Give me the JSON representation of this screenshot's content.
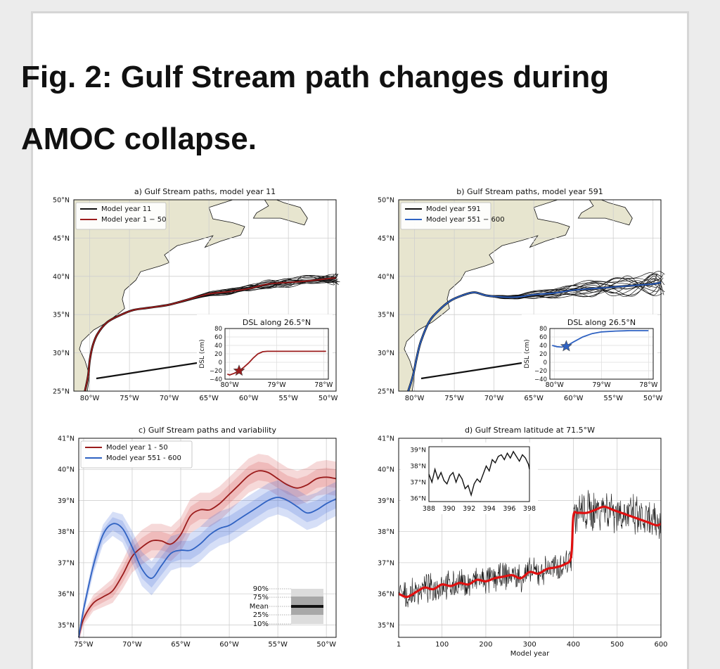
{
  "figure_title": "Fig. 2: Gulf Stream path changes during AMOC collapse.",
  "colors": {
    "black": "#111111",
    "red": "#9b1c1c",
    "blue": "#2f62c2",
    "land": "#e7e5cf",
    "bright_red": "#e01010"
  },
  "chart_data": [
    {
      "panel": "a",
      "type": "line",
      "title": "a) Gulf Stream paths, model year 11",
      "legend": [
        "Model year 11",
        "Model year 1 − 50"
      ],
      "legend_position": "top-left",
      "x_ticks": [
        "80°W",
        "75°W",
        "70°W",
        "65°W",
        "60°W",
        "55°W",
        "50°W"
      ],
      "y_ticks": [
        "25°N",
        "30°N",
        "35°N",
        "40°N",
        "45°N",
        "50°N"
      ],
      "xlim": [
        -82,
        -49
      ],
      "ylim": [
        25,
        50
      ],
      "series": [
        {
          "name": "Model year 1 − 50",
          "x": [
            -80.6,
            -80.2,
            -80.0,
            -79.6,
            -79.0,
            -77.8,
            -76.0,
            -74.5,
            -72.5,
            -70.0,
            -67.5,
            -65.0,
            -62.5,
            -60.0,
            -57.5,
            -55.0,
            -52.5,
            -50.0,
            -49.0
          ],
          "y": [
            25.0,
            27.0,
            29.0,
            31.0,
            32.5,
            34.0,
            35.0,
            35.6,
            35.9,
            36.3,
            37.0,
            37.7,
            38.0,
            38.4,
            39.0,
            39.2,
            39.4,
            39.7,
            39.8
          ]
        }
      ],
      "inset": {
        "title": "DSL along 26.5°N",
        "ylabel": "DSL (cm)",
        "x_ticks": [
          "80°W",
          "79°W",
          "78°W"
        ],
        "y_ticks": [
          "−40",
          "−20",
          "0",
          "20",
          "40",
          "60",
          "80"
        ],
        "xlim": [
          -80.1,
          -77.9
        ],
        "ylim": [
          -40,
          80
        ],
        "x": [
          -80.05,
          -80.0,
          -79.9,
          -79.8,
          -79.7,
          -79.6,
          -79.5,
          -79.4,
          -79.3,
          -79.2,
          -79.0,
          -78.8,
          -78.5,
          -78.2,
          -77.95
        ],
        "y": [
          -28,
          -30,
          -26,
          -20,
          -12,
          -2,
          10,
          20,
          25,
          26,
          26,
          26,
          26,
          26,
          26
        ],
        "marker": {
          "x": -79.8,
          "y": -20
        }
      }
    },
    {
      "panel": "b",
      "type": "line",
      "title": "b) Gulf Stream paths, model year 591",
      "legend": [
        "Model year 591",
        "Model year 551 − 600"
      ],
      "legend_position": "top-left",
      "x_ticks": [
        "80°W",
        "75°W",
        "70°W",
        "65°W",
        "60°W",
        "55°W",
        "50°W"
      ],
      "y_ticks": [
        "25°N",
        "30°N",
        "35°N",
        "40°N",
        "45°N",
        "50°N"
      ],
      "xlim": [
        -82,
        -49
      ],
      "ylim": [
        25,
        50
      ],
      "series": [
        {
          "name": "Model year 551 − 600",
          "x": [
            -80.8,
            -80.2,
            -79.7,
            -79.2,
            -78.2,
            -77.0,
            -75.5,
            -74.0,
            -72.5,
            -71.0,
            -69.0,
            -67.0,
            -65.0,
            -62.5,
            -60.0,
            -57.5,
            -55.0,
            -52.5,
            -50.0,
            -49.0
          ],
          "y": [
            25.0,
            27.0,
            29.5,
            31.5,
            34.0,
            35.5,
            36.8,
            37.5,
            37.9,
            37.5,
            37.3,
            37.3,
            37.6,
            37.8,
            38.2,
            38.4,
            38.6,
            38.8,
            39.0,
            39.2
          ]
        }
      ],
      "inset": {
        "title": "DSL along 26.5°N",
        "ylabel": "DSL (cm)",
        "x_ticks": [
          "80°W",
          "79°W",
          "78°W"
        ],
        "y_ticks": [
          "−40",
          "−20",
          "0",
          "20",
          "40",
          "60",
          "80"
        ],
        "xlim": [
          -80.1,
          -77.9
        ],
        "ylim": [
          -40,
          80
        ],
        "x": [
          -80.05,
          -79.95,
          -79.85,
          -79.75,
          -79.6,
          -79.4,
          -79.2,
          -79.0,
          -78.7,
          -78.4,
          -78.0
        ],
        "y": [
          40,
          37,
          36,
          38,
          48,
          60,
          68,
          72,
          74,
          75,
          75
        ],
        "marker": {
          "x": -79.75,
          "y": 38
        }
      }
    },
    {
      "panel": "c",
      "type": "line",
      "title": "c) Gulf Stream paths and variability",
      "legend": [
        "Model year 1 - 50",
        "Model year 551 - 600"
      ],
      "legend_position": "top-left",
      "x_ticks": [
        "75°W",
        "70°W",
        "65°W",
        "60°W",
        "55°W",
        "50°W"
      ],
      "y_ticks": [
        "35°N",
        "36°N",
        "37°N",
        "38°N",
        "39°N",
        "40°N",
        "41°N"
      ],
      "xlim": [
        -75.5,
        -49
      ],
      "ylim": [
        34.6,
        41
      ],
      "x": [
        -75.5,
        -75.0,
        -74.0,
        -73.0,
        -72.0,
        -71.0,
        -70.0,
        -69.0,
        -68.0,
        -67.0,
        -66.0,
        -65.0,
        -64.0,
        -63.0,
        -62.0,
        -61.0,
        -60.0,
        -59.0,
        -58.0,
        -57.0,
        -56.0,
        -55.0,
        -54.0,
        -53.0,
        -52.0,
        -51.0,
        -50.0,
        -49.0
      ],
      "series": [
        {
          "name": "Model year 1 - 50",
          "values": [
            34.6,
            35.2,
            35.7,
            35.9,
            36.1,
            36.6,
            37.2,
            37.5,
            37.7,
            37.7,
            37.6,
            37.9,
            38.5,
            38.7,
            38.7,
            38.9,
            39.2,
            39.5,
            39.8,
            39.95,
            39.9,
            39.7,
            39.5,
            39.4,
            39.5,
            39.7,
            39.75,
            39.7
          ]
        },
        {
          "name": "Model year 551 - 600",
          "values": [
            34.6,
            35.5,
            36.9,
            37.9,
            38.25,
            38.1,
            37.5,
            36.8,
            36.5,
            36.9,
            37.3,
            37.4,
            37.4,
            37.6,
            37.9,
            38.1,
            38.2,
            38.4,
            38.6,
            38.8,
            39.0,
            39.1,
            39.0,
            38.8,
            38.6,
            38.7,
            38.9,
            39.05
          ]
        }
      ],
      "band_legend": {
        "labels": [
          "90%",
          "75%",
          "Mean",
          "25%",
          "10%"
        ]
      }
    },
    {
      "panel": "d",
      "type": "line",
      "title": "d) Gulf Stream latitude at 71.5°W",
      "xlabel": "Model year",
      "x_ticks": [
        "1",
        "100",
        "200",
        "300",
        "400",
        "500",
        "600"
      ],
      "y_ticks": [
        "35°N",
        "36°N",
        "37°N",
        "38°N",
        "39°N",
        "40°N",
        "41°N"
      ],
      "xlim": [
        1,
        600
      ],
      "ylim": [
        34.6,
        41
      ],
      "series": [
        {
          "name": "smoothed",
          "x": [
            1,
            20,
            40,
            60,
            80,
            100,
            120,
            140,
            160,
            180,
            200,
            220,
            240,
            260,
            280,
            300,
            320,
            340,
            360,
            380,
            395,
            400,
            410,
            430,
            450,
            470,
            490,
            510,
            530,
            550,
            570,
            590,
            600
          ],
          "y": [
            36.0,
            35.9,
            36.05,
            36.2,
            36.15,
            36.3,
            36.25,
            36.35,
            36.3,
            36.45,
            36.4,
            36.5,
            36.55,
            36.6,
            36.5,
            36.7,
            36.65,
            36.8,
            36.85,
            36.95,
            37.2,
            38.5,
            38.6,
            38.6,
            38.7,
            38.8,
            38.7,
            38.6,
            38.5,
            38.4,
            38.3,
            38.2,
            38.25
          ]
        }
      ],
      "inset": {
        "x_ticks": [
          "388",
          "390",
          "392",
          "394",
          "396",
          "398"
        ],
        "y_ticks": [
          "36°N",
          "37°N",
          "38°N",
          "39°N"
        ],
        "xlim": [
          388,
          398
        ],
        "ylim": [
          35.8,
          39.2
        ],
        "x": [
          388,
          388.3,
          388.6,
          388.9,
          389.2,
          389.5,
          389.8,
          390.1,
          390.4,
          390.7,
          391.0,
          391.3,
          391.6,
          391.9,
          392.2,
          392.5,
          392.8,
          393.1,
          393.4,
          393.7,
          394.0,
          394.3,
          394.6,
          394.9,
          395.2,
          395.5,
          395.8,
          396.1,
          396.4,
          396.7,
          397.0,
          397.3,
          397.6,
          397.9,
          398
        ],
        "y": [
          37.5,
          37.0,
          37.8,
          37.2,
          37.6,
          37.1,
          36.9,
          37.4,
          37.6,
          37.0,
          37.5,
          37.2,
          36.6,
          36.8,
          36.2,
          36.9,
          37.2,
          37.0,
          37.5,
          38.0,
          37.7,
          38.4,
          38.2,
          38.6,
          38.7,
          38.4,
          38.8,
          38.5,
          38.9,
          38.6,
          38.3,
          38.7,
          38.5,
          38.1,
          37.8
        ]
      }
    }
  ]
}
